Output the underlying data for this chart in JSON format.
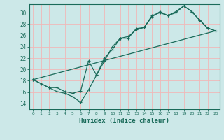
{
  "title": "",
  "xlabel": "Humidex (Indice chaleur)",
  "background_color": "#cce8e8",
  "grid_color": "#f0b8b8",
  "line_color": "#1a6b5a",
  "xlim": [
    -0.5,
    23.5
  ],
  "ylim": [
    13.0,
    31.5
  ],
  "yticks": [
    14,
    16,
    18,
    20,
    22,
    24,
    26,
    28,
    30
  ],
  "xticks": [
    0,
    1,
    2,
    3,
    4,
    5,
    6,
    7,
    8,
    9,
    10,
    11,
    12,
    13,
    14,
    15,
    16,
    17,
    18,
    19,
    20,
    21,
    22,
    23
  ],
  "line1_x": [
    0,
    1,
    2,
    3,
    4,
    5,
    6,
    7,
    8,
    9,
    10,
    11,
    12,
    13,
    14,
    15,
    16,
    17,
    18,
    19,
    20,
    21,
    22,
    23
  ],
  "line1_y": [
    18.2,
    17.5,
    16.8,
    16.1,
    15.8,
    15.2,
    14.2,
    16.4,
    19.0,
    21.5,
    24.0,
    25.5,
    25.5,
    27.2,
    27.4,
    29.3,
    30.2,
    29.5,
    30.0,
    31.2,
    30.2,
    28.7,
    27.3,
    26.8
  ],
  "line2_x": [
    0,
    2,
    3,
    4,
    5,
    6,
    7,
    8,
    9,
    10,
    11,
    12,
    13,
    14,
    15,
    16,
    17,
    18,
    19,
    20,
    21,
    22,
    23
  ],
  "line2_y": [
    18.2,
    16.8,
    16.8,
    16.1,
    15.8,
    16.2,
    21.5,
    19.0,
    22.0,
    23.5,
    25.5,
    25.8,
    27.0,
    27.4,
    29.5,
    30.0,
    29.5,
    30.2,
    31.2,
    30.2,
    28.7,
    27.3,
    26.8
  ],
  "line3_x": [
    0,
    23
  ],
  "line3_y": [
    18.2,
    26.8
  ]
}
